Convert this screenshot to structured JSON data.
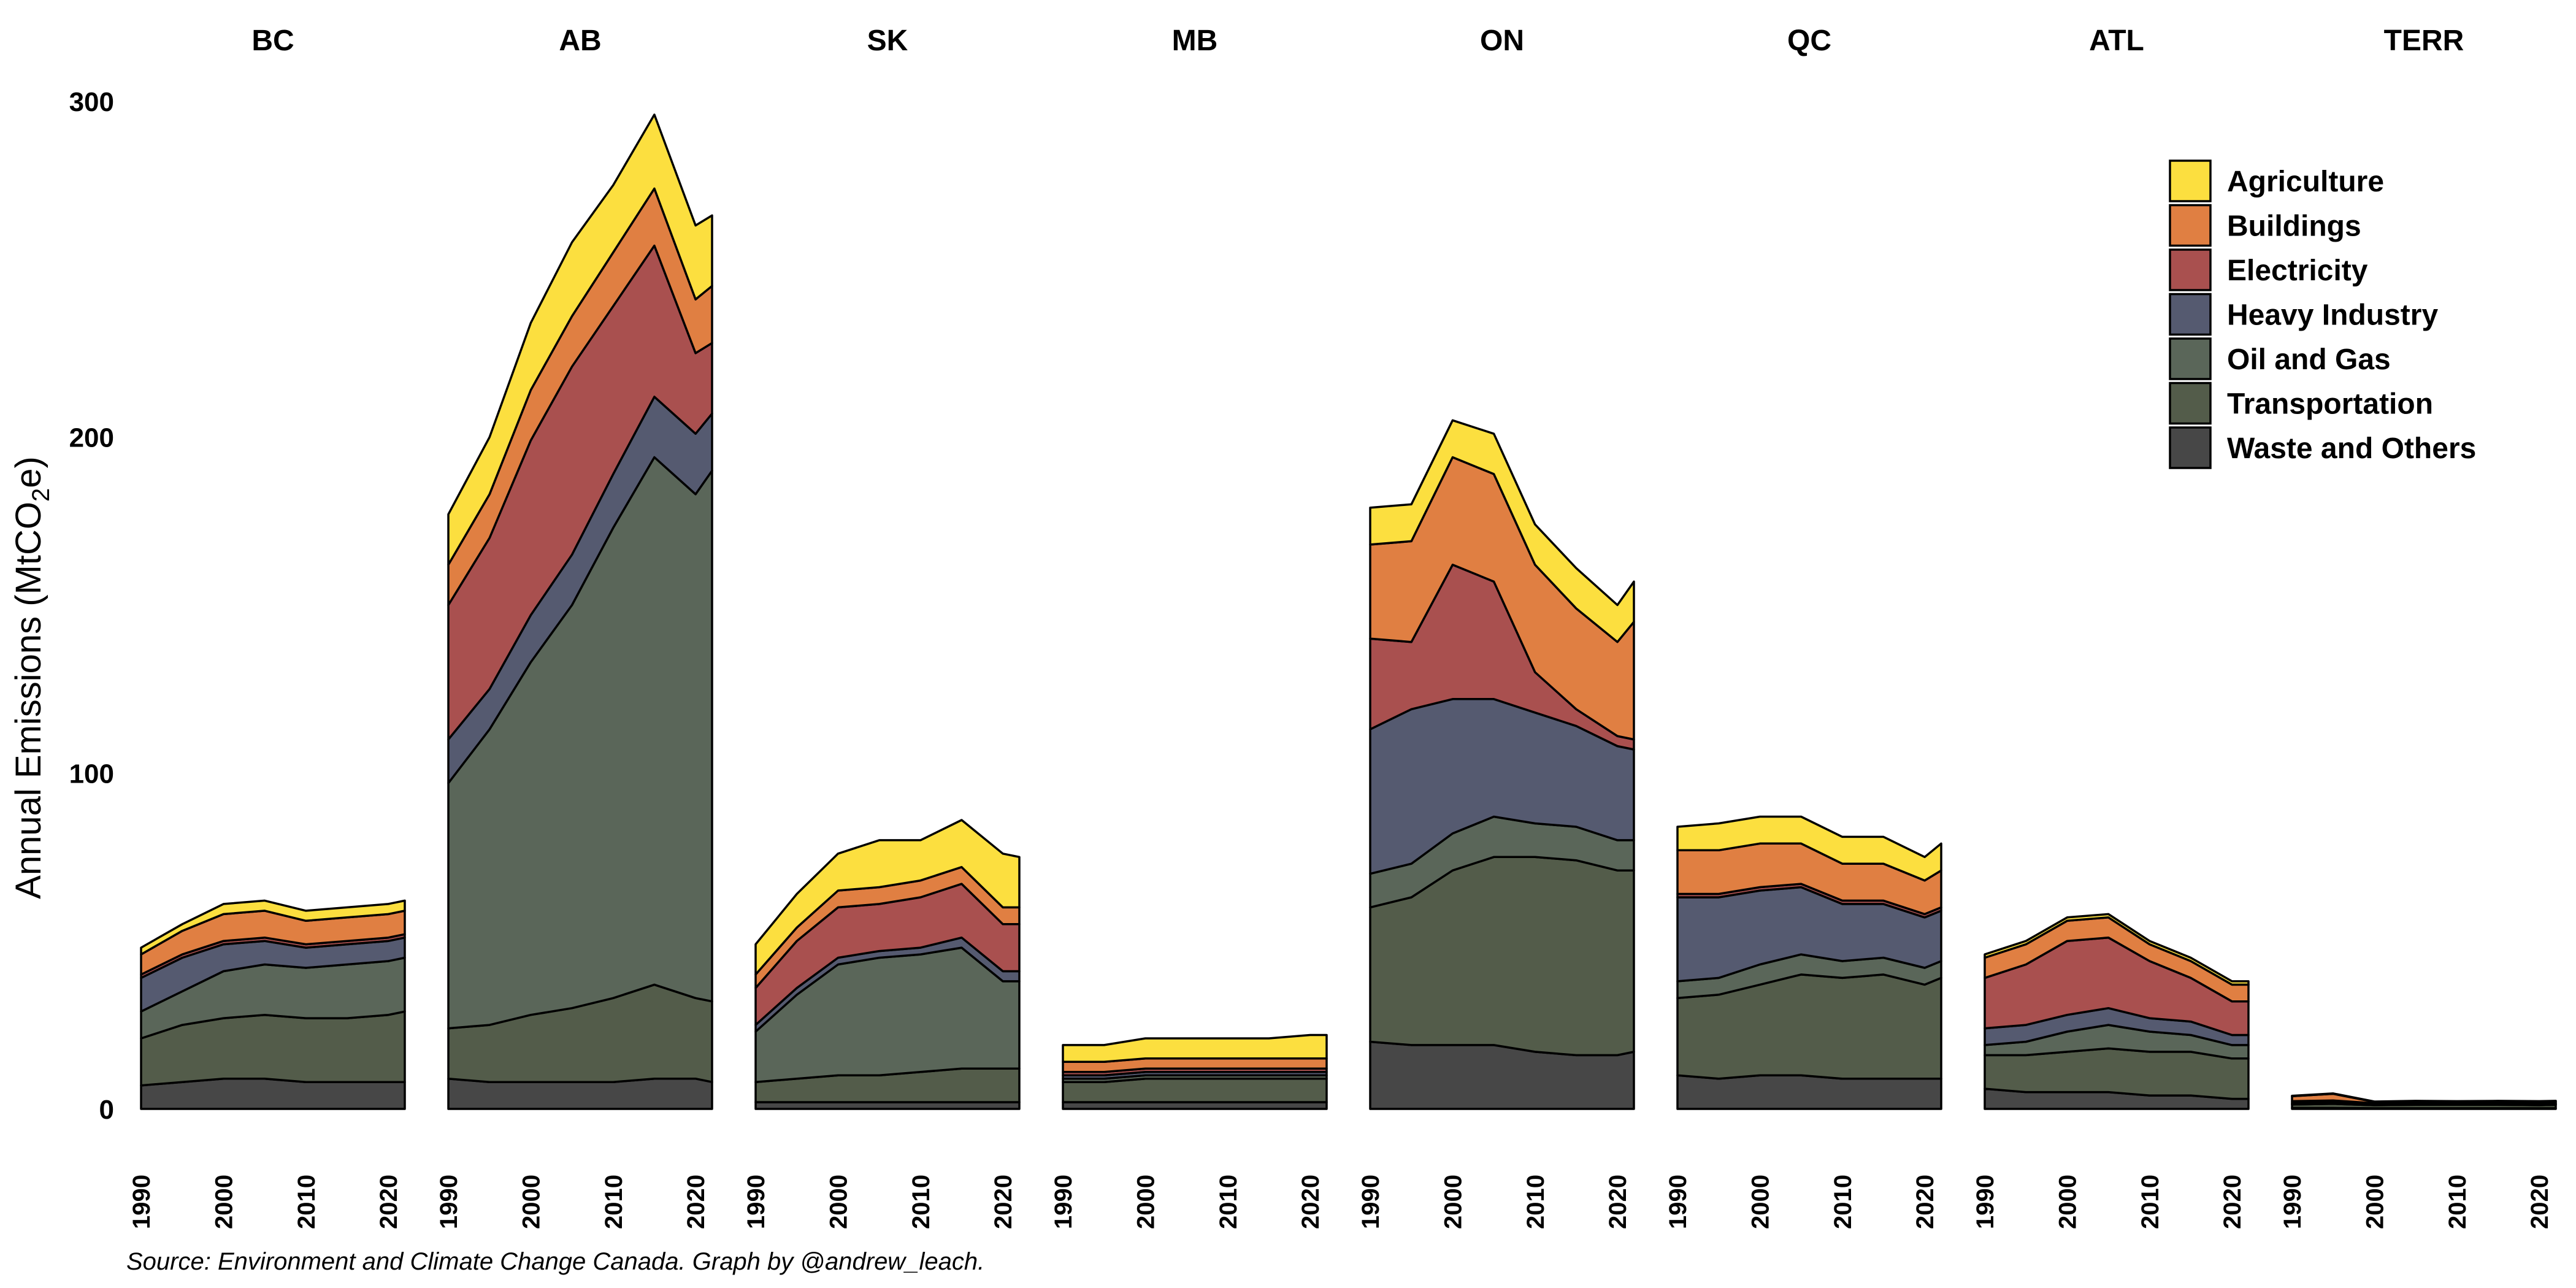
{
  "chart_data": {
    "type": "area",
    "stacked": true,
    "facet_by": "province",
    "ylabel_prefix": "Annual Emissions  (MtCO",
    "ylabel_sub": "2",
    "ylabel_suffix": "e)",
    "caption": "Source: Environment and Climate Change Canada. Graph by @andrew_leach.",
    "ylim": [
      0,
      300
    ],
    "yticks": [
      0,
      100,
      200,
      300
    ],
    "xlim": [
      1990,
      2022
    ],
    "xticks": [
      1990,
      2000,
      2010,
      2020
    ],
    "legend_position": "top-right",
    "years": [
      1990,
      1995,
      2000,
      2005,
      2010,
      2015,
      2020,
      2022
    ],
    "sectors": [
      {
        "name": "Waste and Others",
        "color": "#474747"
      },
      {
        "name": "Transportation",
        "color": "#535c4a"
      },
      {
        "name": "Oil and Gas",
        "color": "#5a6659"
      },
      {
        "name": "Heavy Industry",
        "color": "#555a70"
      },
      {
        "name": "Electricity",
        "color": "#a9504f"
      },
      {
        "name": "Buildings",
        "color": "#e07f42"
      },
      {
        "name": "Agriculture",
        "color": "#fcdf3f"
      }
    ],
    "legend_order": [
      "Agriculture",
      "Buildings",
      "Electricity",
      "Heavy Industry",
      "Oil and Gas",
      "Transportation",
      "Waste and Others"
    ],
    "panels": [
      {
        "name": "BC",
        "series": {
          "Waste and Others": [
            7,
            8,
            9,
            9,
            8,
            8,
            8,
            8
          ],
          "Transportation": [
            14,
            17,
            18,
            19,
            19,
            19,
            20,
            21
          ],
          "Oil and Gas": [
            8,
            10,
            14,
            15,
            15,
            16,
            16,
            16
          ],
          "Heavy Industry": [
            10,
            10,
            8,
            7,
            6,
            6,
            6,
            6
          ],
          "Electricity": [
            1,
            1,
            1,
            1,
            1,
            1,
            1,
            1
          ],
          "Buildings": [
            6,
            7,
            8,
            8,
            7,
            7,
            7,
            7
          ],
          "Agriculture": [
            2,
            2,
            3,
            3,
            3,
            3,
            3,
            3
          ]
        }
      },
      {
        "name": "AB",
        "series": {
          "Waste and Others": [
            9,
            8,
            8,
            8,
            8,
            9,
            9,
            8
          ],
          "Transportation": [
            15,
            17,
            20,
            22,
            25,
            28,
            24,
            24
          ],
          "Oil and Gas": [
            73,
            88,
            105,
            120,
            140,
            157,
            150,
            158
          ],
          "Heavy Industry": [
            13,
            12,
            14,
            15,
            16,
            18,
            18,
            17
          ],
          "Electricity": [
            40,
            45,
            52,
            56,
            50,
            45,
            24,
            21
          ],
          "Buildings": [
            12,
            13,
            15,
            15,
            16,
            17,
            16,
            17
          ],
          "Agriculture": [
            15,
            17,
            20,
            22,
            20,
            22,
            22,
            21
          ]
        }
      },
      {
        "name": "SK",
        "series": {
          "Waste and Others": [
            2,
            2,
            2,
            2,
            2,
            2,
            2,
            2
          ],
          "Transportation": [
            6,
            7,
            8,
            8,
            9,
            10,
            10,
            10
          ],
          "Oil and Gas": [
            15,
            25,
            33,
            35,
            35,
            36,
            26,
            26
          ],
          "Heavy Industry": [
            2,
            2,
            2,
            2,
            2,
            3,
            3,
            3
          ],
          "Electricity": [
            11,
            14,
            15,
            14,
            15,
            16,
            14,
            14
          ],
          "Buildings": [
            4,
            4,
            5,
            5,
            5,
            5,
            5,
            5
          ],
          "Agriculture": [
            9,
            10,
            11,
            14,
            12,
            14,
            16,
            15
          ]
        }
      },
      {
        "name": "MB",
        "series": {
          "Waste and Others": [
            2,
            2,
            2,
            2,
            2,
            2,
            2,
            2
          ],
          "Transportation": [
            6,
            6,
            7,
            7,
            7,
            7,
            7,
            7
          ],
          "Oil and Gas": [
            1,
            1,
            1,
            1,
            1,
            1,
            1,
            1
          ],
          "Heavy Industry": [
            1,
            1,
            1,
            1,
            1,
            1,
            1,
            1
          ],
          "Electricity": [
            1,
            1,
            1,
            1,
            1,
            1,
            1,
            1
          ],
          "Buildings": [
            3,
            3,
            3,
            3,
            3,
            3,
            3,
            3
          ],
          "Agriculture": [
            5,
            5,
            6,
            6,
            6,
            6,
            7,
            7
          ]
        }
      },
      {
        "name": "ON",
        "series": {
          "Waste and Others": [
            20,
            19,
            19,
            19,
            17,
            16,
            16,
            17
          ],
          "Transportation": [
            40,
            44,
            52,
            56,
            58,
            58,
            55,
            54
          ],
          "Oil and Gas": [
            10,
            10,
            11,
            12,
            10,
            10,
            9,
            9
          ],
          "Heavy Industry": [
            43,
            46,
            40,
            35,
            33,
            30,
            28,
            27
          ],
          "Electricity": [
            27,
            20,
            40,
            35,
            12,
            5,
            3,
            3
          ],
          "Buildings": [
            28,
            30,
            32,
            32,
            32,
            30,
            28,
            35
          ],
          "Agriculture": [
            11,
            11,
            11,
            12,
            12,
            12,
            11,
            12
          ]
        }
      },
      {
        "name": "QC",
        "series": {
          "Waste and Others": [
            10,
            9,
            10,
            10,
            9,
            9,
            9,
            9
          ],
          "Transportation": [
            23,
            25,
            27,
            30,
            30,
            31,
            28,
            30
          ],
          "Oil and Gas": [
            5,
            5,
            6,
            6,
            5,
            5,
            5,
            5
          ],
          "Heavy Industry": [
            25,
            24,
            22,
            20,
            17,
            16,
            15,
            15
          ],
          "Electricity": [
            1,
            1,
            1,
            1,
            1,
            1,
            1,
            1
          ],
          "Buildings": [
            13,
            13,
            13,
            12,
            11,
            11,
            10,
            11
          ],
          "Agriculture": [
            7,
            8,
            8,
            8,
            8,
            8,
            7,
            8
          ]
        }
      },
      {
        "name": "ATL",
        "series": {
          "Waste and Others": [
            6,
            5,
            5,
            5,
            4,
            4,
            3,
            3
          ],
          "Transportation": [
            10,
            11,
            12,
            13,
            13,
            13,
            12,
            12
          ],
          "Oil and Gas": [
            3,
            4,
            6,
            7,
            6,
            5,
            4,
            4
          ],
          "Heavy Industry": [
            5,
            5,
            5,
            5,
            4,
            4,
            3,
            3
          ],
          "Electricity": [
            15,
            18,
            22,
            21,
            17,
            13,
            10,
            10
          ],
          "Buildings": [
            6,
            6,
            6,
            6,
            5,
            5,
            5,
            5
          ],
          "Agriculture": [
            1,
            1,
            1,
            1,
            1,
            1,
            1,
            1
          ]
        }
      },
      {
        "name": "TERR",
        "series": {
          "Waste and Others": [
            0.3,
            0.3,
            0.2,
            0.2,
            0.2,
            0.2,
            0.2,
            0.2
          ],
          "Transportation": [
            1.0,
            1.2,
            0.9,
            1.0,
            1.0,
            1.0,
            0.9,
            1.0
          ],
          "Oil and Gas": [
            0.2,
            0.2,
            0.1,
            0.1,
            0.1,
            0.1,
            0.1,
            0.1
          ],
          "Heavy Industry": [
            0.3,
            0.3,
            0.2,
            0.2,
            0.2,
            0.2,
            0.2,
            0.2
          ],
          "Electricity": [
            0.5,
            0.5,
            0.3,
            0.3,
            0.3,
            0.3,
            0.3,
            0.3
          ],
          "Buildings": [
            1.5,
            2.0,
            0.4,
            0.5,
            0.4,
            0.5,
            0.5,
            0.5
          ],
          "Agriculture": [
            0.1,
            0.1,
            0.1,
            0.1,
            0.1,
            0.1,
            0.1,
            0.1
          ]
        }
      }
    ]
  }
}
